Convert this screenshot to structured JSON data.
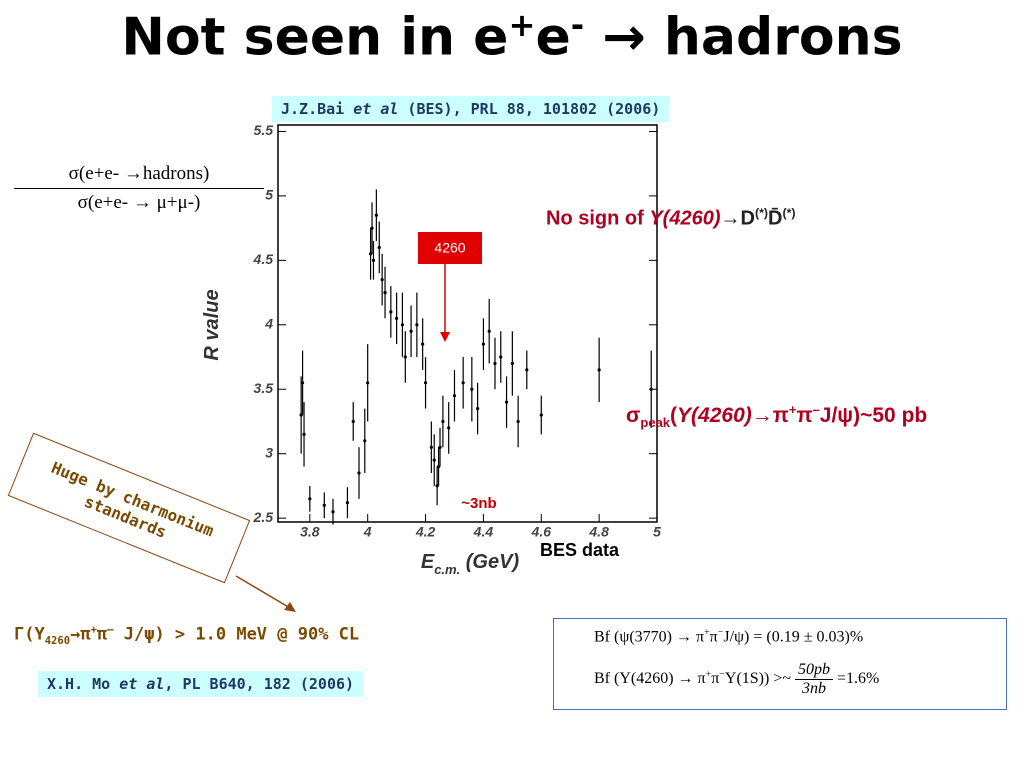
{
  "title": [
    "Not seen in e",
    "+",
    "e",
    "-",
    " → hadrons"
  ],
  "reference_top": [
    "J.Z.Bai ",
    "et al",
    " (BES), PRL 88, 101802 (2006)"
  ],
  "ratio": {
    "numerator": "σ(e+e- →hadrons)",
    "denominator": "σ(e+e- → μ+μ-)"
  },
  "no_sign": [
    "No sign of ",
    "Y(4260)",
    "→D",
    "(*)",
    "D̄",
    "(*)"
  ],
  "sigma_peak": [
    "σ",
    "peak",
    "(",
    "Y(4260)",
    "→π",
    "+",
    "π",
    "–",
    "J/ψ)~50 pb"
  ],
  "callout": "Huge by charmonium standards",
  "caption": "BES data",
  "width_text": [
    "Γ(Y",
    "4260",
    "→π",
    "+",
    "π",
    "–",
    " J/ψ) > 1.0 MeV @ 90% CL"
  ],
  "reference_bottom": [
    "X.H. Mo ",
    "et al",
    ", PL B640, 182 (2006)"
  ],
  "formulas": [
    [
      "Bf (ψ(3770) → π",
      "+",
      "π",
      "−",
      "J/ψ) = (0.19 ± 0.03)%"
    ],
    [
      "Bf (Y(4260) → π",
      "+",
      "π",
      "−",
      "Υ(1S)) >~ ",
      "50pb",
      "3nb",
      " =1.6%"
    ]
  ],
  "chart_data": {
    "type": "scatter",
    "y_label": "R value",
    "x_label": [
      "E",
      "c.m.",
      " (GeV)"
    ],
    "annotations": [
      "4260",
      "~3nb"
    ],
    "x": [
      3.77,
      3.775,
      3.78,
      3.8,
      3.85,
      3.88,
      3.93,
      3.95,
      3.97,
      3.99,
      4.0,
      4.01,
      4.015,
      4.02,
      4.03,
      4.04,
      4.05,
      4.06,
      4.08,
      4.1,
      4.12,
      4.13,
      4.15,
      4.17,
      4.19,
      4.2,
      4.22,
      4.23,
      4.24,
      4.245,
      4.25,
      4.26,
      4.28,
      4.3,
      4.33,
      4.36,
      4.38,
      4.4,
      4.42,
      4.44,
      4.46,
      4.48,
      4.5,
      4.52,
      4.55,
      4.6,
      4.8,
      4.98
    ],
    "values": [
      3.3,
      3.55,
      3.15,
      2.65,
      2.6,
      2.55,
      2.62,
      3.25,
      2.85,
      3.1,
      3.55,
      4.55,
      4.75,
      4.5,
      4.85,
      4.6,
      4.35,
      4.25,
      4.1,
      4.05,
      4.0,
      3.75,
      3.95,
      4.0,
      3.85,
      3.55,
      3.05,
      2.95,
      2.75,
      2.9,
      3.05,
      3.25,
      3.2,
      3.45,
      3.55,
      3.5,
      3.35,
      3.85,
      3.95,
      3.7,
      3.75,
      3.4,
      3.7,
      3.25,
      3.65,
      3.3,
      3.65,
      3.5
    ],
    "errors": [
      0.3,
      0.25,
      0.25,
      0.1,
      0.1,
      0.1,
      0.12,
      0.15,
      0.2,
      0.25,
      0.3,
      0.2,
      0.2,
      0.15,
      0.2,
      0.2,
      0.2,
      0.2,
      0.2,
      0.2,
      0.25,
      0.2,
      0.2,
      0.25,
      0.2,
      0.2,
      0.2,
      0.2,
      0.15,
      0.15,
      0.15,
      0.2,
      0.2,
      0.2,
      0.2,
      0.25,
      0.2,
      0.2,
      0.25,
      0.2,
      0.2,
      0.2,
      0.25,
      0.2,
      0.15,
      0.15,
      0.25,
      0.3
    ],
    "color": "#000000",
    "xlim": [
      3.69,
      5.0
    ],
    "ylim": [
      2.47,
      5.55
    ],
    "xticks": [
      3.8,
      4,
      4.2,
      4.4,
      4.6,
      4.8,
      5
    ],
    "yticks": [
      2.5,
      3,
      3.5,
      4,
      4.5,
      5,
      5.5
    ]
  }
}
